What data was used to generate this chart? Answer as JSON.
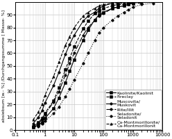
{
  "title": "",
  "xlabel": "",
  "ylabel": "absiebsum [w.- %] /Durchgangssumme [ Masse- %]",
  "xlim": [
    0.1,
    10000
  ],
  "ylim": [
    0,
    100
  ],
  "yticks": [
    0,
    10,
    20,
    30,
    40,
    50,
    60,
    70,
    80,
    90
  ],
  "series": [
    {
      "name": "Kaolinite/Kaolinit",
      "linestyle": "-",
      "marker": "s",
      "markersize": 2.5,
      "linewidth": 0.8,
      "x": [
        0.4,
        0.6,
        0.8,
        1.0,
        2.0,
        3.0,
        5.0,
        7.0,
        10.0,
        20.0,
        30.0,
        50.0,
        70.0,
        100.0,
        200.0,
        300.0,
        500.0,
        700.0
      ],
      "y": [
        2,
        4,
        6,
        9,
        17,
        25,
        37,
        46,
        55,
        70,
        78,
        86,
        90,
        92,
        95,
        96,
        97,
        98
      ]
    },
    {
      "name": "Fireclay",
      "linestyle": "--",
      "marker": "s",
      "markersize": 2.5,
      "linewidth": 0.8,
      "x": [
        0.4,
        0.6,
        0.8,
        1.0,
        2.0,
        3.0,
        5.0,
        7.0,
        10.0,
        20.0,
        30.0,
        50.0,
        70.0,
        100.0,
        200.0,
        300.0,
        500.0,
        700.0,
        1000.0
      ],
      "y": [
        3,
        6,
        9,
        13,
        23,
        33,
        47,
        56,
        65,
        79,
        85,
        91,
        93,
        95,
        97,
        98,
        98,
        99,
        99
      ]
    },
    {
      "name": "Muscovita/\nMuskovit",
      "linestyle": "-",
      "marker": "o",
      "markersize": 2.5,
      "linewidth": 0.8,
      "x": [
        0.4,
        0.6,
        0.8,
        1.0,
        2.0,
        3.0,
        5.0,
        7.0,
        10.0,
        20.0,
        30.0,
        50.0,
        70.0,
        100.0,
        200.0
      ],
      "y": [
        5,
        10,
        15,
        21,
        35,
        45,
        59,
        67,
        74,
        85,
        89,
        92,
        95,
        97,
        99
      ]
    },
    {
      "name": "Illite/Illit",
      "linestyle": "-.",
      "marker": "o",
      "markersize": 2.5,
      "linewidth": 0.8,
      "x": [
        0.4,
        0.6,
        0.8,
        1.0,
        2.0,
        3.0,
        5.0,
        7.0,
        10.0,
        20.0,
        30.0,
        50.0,
        70.0,
        100.0,
        200.0,
        300.0,
        500.0,
        700.0,
        1000.0,
        2000.0
      ],
      "y": [
        3,
        5,
        8,
        12,
        22,
        30,
        43,
        52,
        60,
        74,
        80,
        86,
        89,
        91,
        95,
        96,
        97,
        98,
        99,
        99
      ]
    },
    {
      "name": "Seladonite/\nSeladonit",
      "linestyle": ":",
      "marker": "o",
      "markersize": 2.5,
      "linewidth": 0.8,
      "x": [
        0.4,
        0.6,
        0.8,
        1.0,
        2.0,
        3.0,
        5.0,
        7.0,
        10.0,
        20.0,
        30.0,
        50.0,
        70.0,
        100.0,
        200.0,
        300.0,
        500.0,
        700.0,
        1000.0,
        2000.0,
        5000.0
      ],
      "y": [
        2,
        3,
        5,
        7,
        13,
        18,
        26,
        32,
        39,
        52,
        60,
        70,
        76,
        80,
        86,
        89,
        92,
        94,
        96,
        98,
        99
      ]
    },
    {
      "name": "Ca-Montmorillonite/\nCa-Montmorillonit",
      "linestyle": "--",
      "marker": "^",
      "markersize": 2.5,
      "linewidth": 0.8,
      "x": [
        0.4,
        0.6,
        0.8,
        1.0,
        2.0,
        3.0,
        5.0,
        7.0,
        10.0,
        20.0,
        30.0,
        50.0,
        70.0,
        100.0,
        200.0,
        300.0,
        500.0
      ],
      "y": [
        8,
        14,
        20,
        27,
        42,
        53,
        66,
        73,
        80,
        89,
        92,
        95,
        97,
        98,
        99,
        99,
        99
      ]
    }
  ],
  "legend_fontsize": 4.5,
  "axis_fontsize": 4.5,
  "tick_fontsize": 5,
  "background_color": "#ffffff",
  "grid_color": "#c8c8c8"
}
